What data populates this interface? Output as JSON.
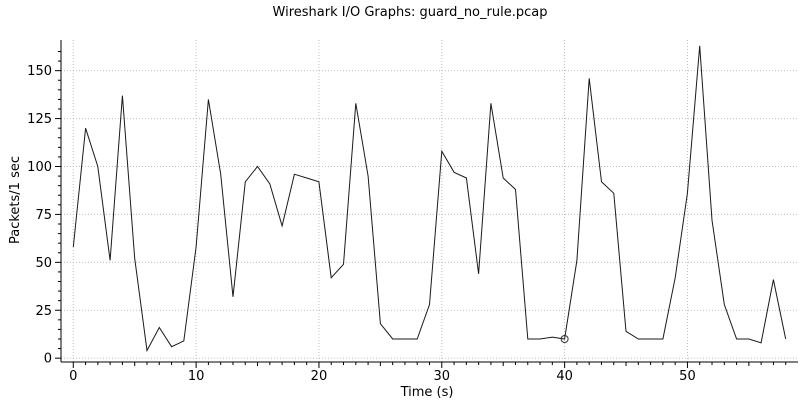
{
  "chart_data": {
    "type": "line",
    "title": "Wireshark I/O Graphs: guard_no_rule.pcap",
    "xlabel": "Time (s)",
    "ylabel": "Packets/1 sec",
    "xlim": [
      -1,
      59
    ],
    "ylim": [
      -2,
      166
    ],
    "x_ticks": [
      0,
      10,
      20,
      30,
      40,
      50
    ],
    "y_ticks": [
      0,
      25,
      50,
      75,
      100,
      125,
      150
    ],
    "grid": "dotted",
    "series": [
      {
        "color": "#1a1a1a",
        "x": [
          0,
          1,
          2,
          3,
          4,
          5,
          6,
          7,
          8,
          9,
          10,
          11,
          12,
          13,
          14,
          15,
          16,
          17,
          18,
          19,
          20,
          21,
          22,
          23,
          24,
          25,
          26,
          27,
          28,
          29,
          30,
          31,
          32,
          33,
          34,
          35,
          36,
          37,
          38,
          39,
          40,
          41,
          42,
          43,
          44,
          45,
          46,
          47,
          48,
          49,
          50,
          51,
          52,
          53,
          54,
          55,
          56,
          57,
          58
        ],
        "values": [
          58,
          120,
          100,
          51,
          137,
          52,
          4,
          16,
          6,
          9,
          58,
          135,
          96,
          32,
          92,
          100,
          91,
          69,
          96,
          94,
          92,
          42,
          49,
          133,
          95,
          18,
          10,
          10,
          10,
          28,
          108,
          97,
          94,
          44,
          133,
          94,
          88,
          10,
          10,
          11,
          10,
          51,
          146,
          92,
          86,
          14,
          10,
          10,
          10,
          42,
          86,
          163,
          72,
          28,
          10,
          10,
          8,
          41,
          10
        ]
      }
    ],
    "marker": {
      "x": 40,
      "y": 10
    }
  }
}
